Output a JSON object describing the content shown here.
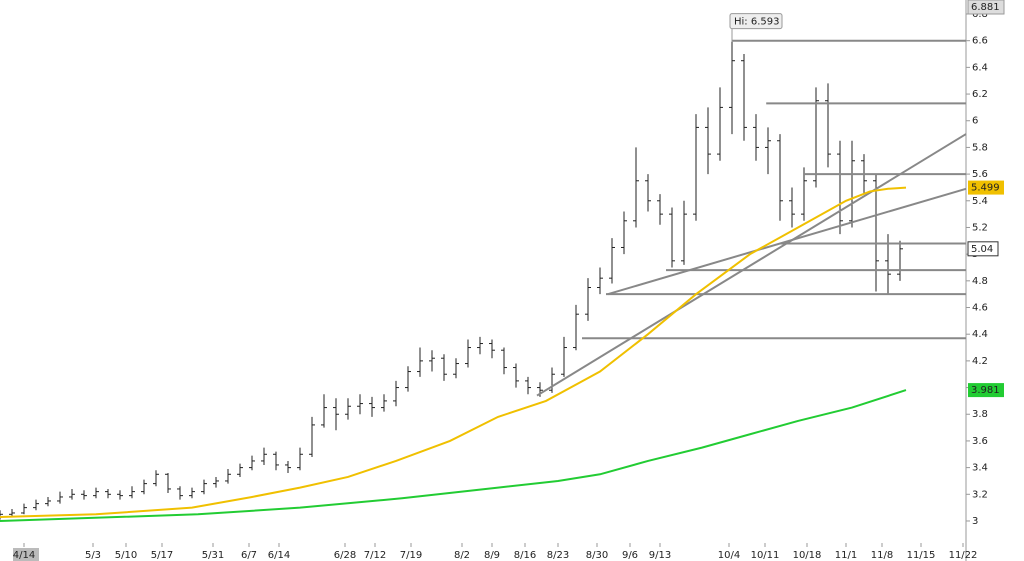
{
  "chart_data": {
    "type": "ohlc",
    "xlim": [
      0,
      161
    ],
    "ylim": [
      2.7,
      6.905
    ],
    "xticks": [
      {
        "value": 4,
        "label": "4/14"
      },
      {
        "value": 15.5,
        "label": "5/3"
      },
      {
        "value": 21,
        "label": "5/10"
      },
      {
        "value": 27,
        "label": "5/17"
      },
      {
        "value": 35.5,
        "label": "5/31"
      },
      {
        "value": 41.5,
        "label": "6/7"
      },
      {
        "value": 46.5,
        "label": "6/14"
      },
      {
        "value": 57.5,
        "label": "6/28"
      },
      {
        "value": 62.5,
        "label": "7/12"
      },
      {
        "value": 68.5,
        "label": "7/19"
      },
      {
        "value": 77,
        "label": "8/2"
      },
      {
        "value": 82,
        "label": "8/9"
      },
      {
        "value": 87.5,
        "label": "8/16"
      },
      {
        "value": 93,
        "label": "8/23"
      },
      {
        "value": 99.5,
        "label": "8/30"
      },
      {
        "value": 105,
        "label": "9/6"
      },
      {
        "value": 110,
        "label": "9/13"
      },
      {
        "value": 121.5,
        "label": "10/4"
      },
      {
        "value": 127.5,
        "label": "10/11"
      },
      {
        "value": 134.5,
        "label": "10/18"
      },
      {
        "value": 141,
        "label": "11/1"
      },
      {
        "value": 147,
        "label": "11/8"
      },
      {
        "value": 153.5,
        "label": "11/15"
      },
      {
        "value": 160.5,
        "label": "11/22"
      }
    ],
    "yticks": [
      3,
      3.2,
      3.4,
      3.6,
      3.8,
      4,
      4.2,
      4.4,
      4.6,
      4.8,
      5,
      5.2,
      5.4,
      5.6,
      5.8,
      6,
      6.2,
      6.4,
      6.6,
      6.8
    ],
    "bar_color": "#222",
    "x": [
      0,
      2,
      4,
      6,
      8,
      10,
      12,
      14,
      16,
      18,
      20,
      22,
      24,
      26,
      28,
      30,
      32,
      34,
      36,
      38,
      40,
      42,
      44,
      46,
      48,
      50,
      52,
      54,
      56,
      58,
      60,
      62,
      64,
      66,
      68,
      70,
      72,
      74,
      76,
      78,
      80,
      82,
      84,
      86,
      88,
      90,
      92,
      94,
      96,
      98,
      100,
      102,
      104,
      106,
      108,
      110,
      112,
      114,
      116,
      118,
      120,
      122,
      124,
      126,
      128,
      130,
      132,
      134,
      136,
      138,
      140,
      142,
      144,
      146,
      148,
      150
    ],
    "open": [
      3.03,
      3.05,
      3.06,
      3.1,
      3.13,
      3.15,
      3.18,
      3.2,
      3.19,
      3.22,
      3.2,
      3.19,
      3.22,
      3.28,
      3.35,
      3.24,
      3.19,
      3.22,
      3.28,
      3.3,
      3.35,
      3.4,
      3.45,
      3.5,
      3.42,
      3.4,
      3.5,
      3.72,
      3.85,
      3.8,
      3.86,
      3.88,
      3.85,
      3.9,
      4.0,
      4.12,
      4.2,
      4.22,
      4.1,
      4.18,
      4.3,
      4.33,
      4.28,
      4.15,
      4.05,
      4.0,
      3.98,
      4.1,
      4.3,
      4.55,
      4.75,
      4.82,
      5.05,
      5.25,
      5.55,
      5.4,
      5.3,
      4.95,
      5.3,
      5.95,
      5.75,
      6.1,
      6.45,
      5.95,
      5.8,
      5.85,
      5.4,
      5.3,
      5.55,
      6.15,
      5.75,
      5.25,
      5.7,
      5.55,
      4.95,
      4.85
    ],
    "high": [
      3.08,
      3.09,
      3.13,
      3.16,
      3.18,
      3.22,
      3.24,
      3.23,
      3.25,
      3.24,
      3.23,
      3.26,
      3.31,
      3.38,
      3.36,
      3.26,
      3.25,
      3.31,
      3.33,
      3.39,
      3.43,
      3.49,
      3.55,
      3.52,
      3.45,
      3.55,
      3.78,
      3.95,
      3.92,
      3.92,
      3.95,
      3.93,
      3.95,
      4.05,
      4.16,
      4.3,
      4.28,
      4.25,
      4.22,
      4.36,
      4.38,
      4.36,
      4.3,
      4.18,
      4.08,
      4.04,
      4.15,
      4.38,
      4.62,
      4.82,
      4.9,
      5.12,
      5.32,
      5.8,
      5.6,
      5.45,
      5.35,
      5.4,
      6.05,
      6.1,
      6.25,
      6.593,
      6.5,
      6.05,
      5.95,
      5.9,
      5.5,
      5.65,
      6.25,
      6.28,
      5.85,
      5.85,
      5.75,
      5.6,
      5.15,
      5.1
    ],
    "low": [
      3.01,
      3.03,
      3.05,
      3.08,
      3.11,
      3.13,
      3.16,
      3.16,
      3.17,
      3.17,
      3.16,
      3.17,
      3.2,
      3.26,
      3.21,
      3.16,
      3.17,
      3.2,
      3.25,
      3.28,
      3.33,
      3.38,
      3.42,
      3.38,
      3.36,
      3.38,
      3.48,
      3.7,
      3.68,
      3.76,
      3.8,
      3.78,
      3.82,
      3.86,
      3.97,
      4.08,
      4.12,
      4.05,
      4.07,
      4.15,
      4.25,
      4.22,
      4.1,
      4.0,
      3.95,
      3.93,
      3.96,
      4.08,
      4.28,
      4.5,
      4.7,
      4.78,
      5.0,
      5.2,
      5.32,
      5.22,
      4.9,
      4.92,
      5.25,
      5.6,
      5.7,
      5.9,
      5.85,
      5.7,
      5.6,
      5.25,
      5.2,
      5.25,
      5.5,
      5.65,
      5.15,
      5.2,
      5.45,
      4.72,
      4.7,
      4.8
    ],
    "close": [
      3.05,
      3.06,
      3.1,
      3.13,
      3.15,
      3.18,
      3.2,
      3.19,
      3.22,
      3.2,
      3.19,
      3.22,
      3.28,
      3.35,
      3.24,
      3.19,
      3.22,
      3.28,
      3.3,
      3.35,
      3.4,
      3.45,
      3.5,
      3.42,
      3.4,
      3.5,
      3.72,
      3.85,
      3.8,
      3.86,
      3.88,
      3.85,
      3.9,
      4.0,
      4.12,
      4.2,
      4.22,
      4.1,
      4.18,
      4.3,
      4.33,
      4.28,
      4.15,
      4.05,
      4.0,
      3.98,
      4.1,
      4.3,
      4.55,
      4.75,
      4.82,
      5.05,
      5.25,
      5.55,
      5.4,
      5.3,
      4.95,
      5.3,
      5.95,
      5.75,
      6.1,
      6.45,
      5.95,
      5.8,
      5.85,
      5.4,
      5.3,
      5.55,
      6.15,
      5.75,
      5.25,
      5.7,
      5.55,
      4.95,
      4.85,
      5.04
    ],
    "series": [
      {
        "color": "#f0c000",
        "x": [
          0,
          16,
          32,
          42,
          50,
          58,
          66,
          75,
          83,
          91,
          100,
          108,
          116,
          125,
          133,
          141,
          145,
          148,
          151
        ],
        "values": [
          3.03,
          3.05,
          3.1,
          3.18,
          3.25,
          3.33,
          3.45,
          3.6,
          3.78,
          3.9,
          4.12,
          4.4,
          4.7,
          5.0,
          5.2,
          5.4,
          5.47,
          5.49,
          5.499
        ]
      },
      {
        "color": "#22cc33",
        "x": [
          0,
          33,
          50,
          67,
          83,
          93,
          100,
          108,
          117,
          125,
          133,
          142,
          151
        ],
        "values": [
          3.0,
          3.05,
          3.1,
          3.17,
          3.25,
          3.3,
          3.35,
          3.45,
          3.55,
          3.65,
          3.75,
          3.85,
          3.981
        ]
      }
    ],
    "lines_color": "#888",
    "lines": [
      {
        "x": [
          122,
          161
        ],
        "y": [
          6.6,
          6.6
        ]
      },
      {
        "x": [
          127.7,
          161
        ],
        "y": [
          6.13,
          6.13
        ]
      },
      {
        "x": [
          134,
          161
        ],
        "y": [
          5.6,
          5.6
        ]
      },
      {
        "x": [
          130,
          161
        ],
        "y": [
          5.08,
          5.08
        ]
      },
      {
        "x": [
          111,
          161
        ],
        "y": [
          4.88,
          4.88
        ]
      },
      {
        "x": [
          101,
          161
        ],
        "y": [
          4.7,
          4.7
        ]
      },
      {
        "x": [
          97,
          161
        ],
        "y": [
          4.37,
          4.37
        ]
      },
      {
        "x": [
          89.5,
          161
        ],
        "y": [
          3.94,
          5.9
        ]
      },
      {
        "x": [
          101.3,
          161
        ],
        "y": [
          4.7,
          5.49
        ]
      }
    ],
    "annotation": {
      "text": "Hi: 6.593",
      "x": 122,
      "y": 6.593
    },
    "axis_marker": 6.881
  }
}
